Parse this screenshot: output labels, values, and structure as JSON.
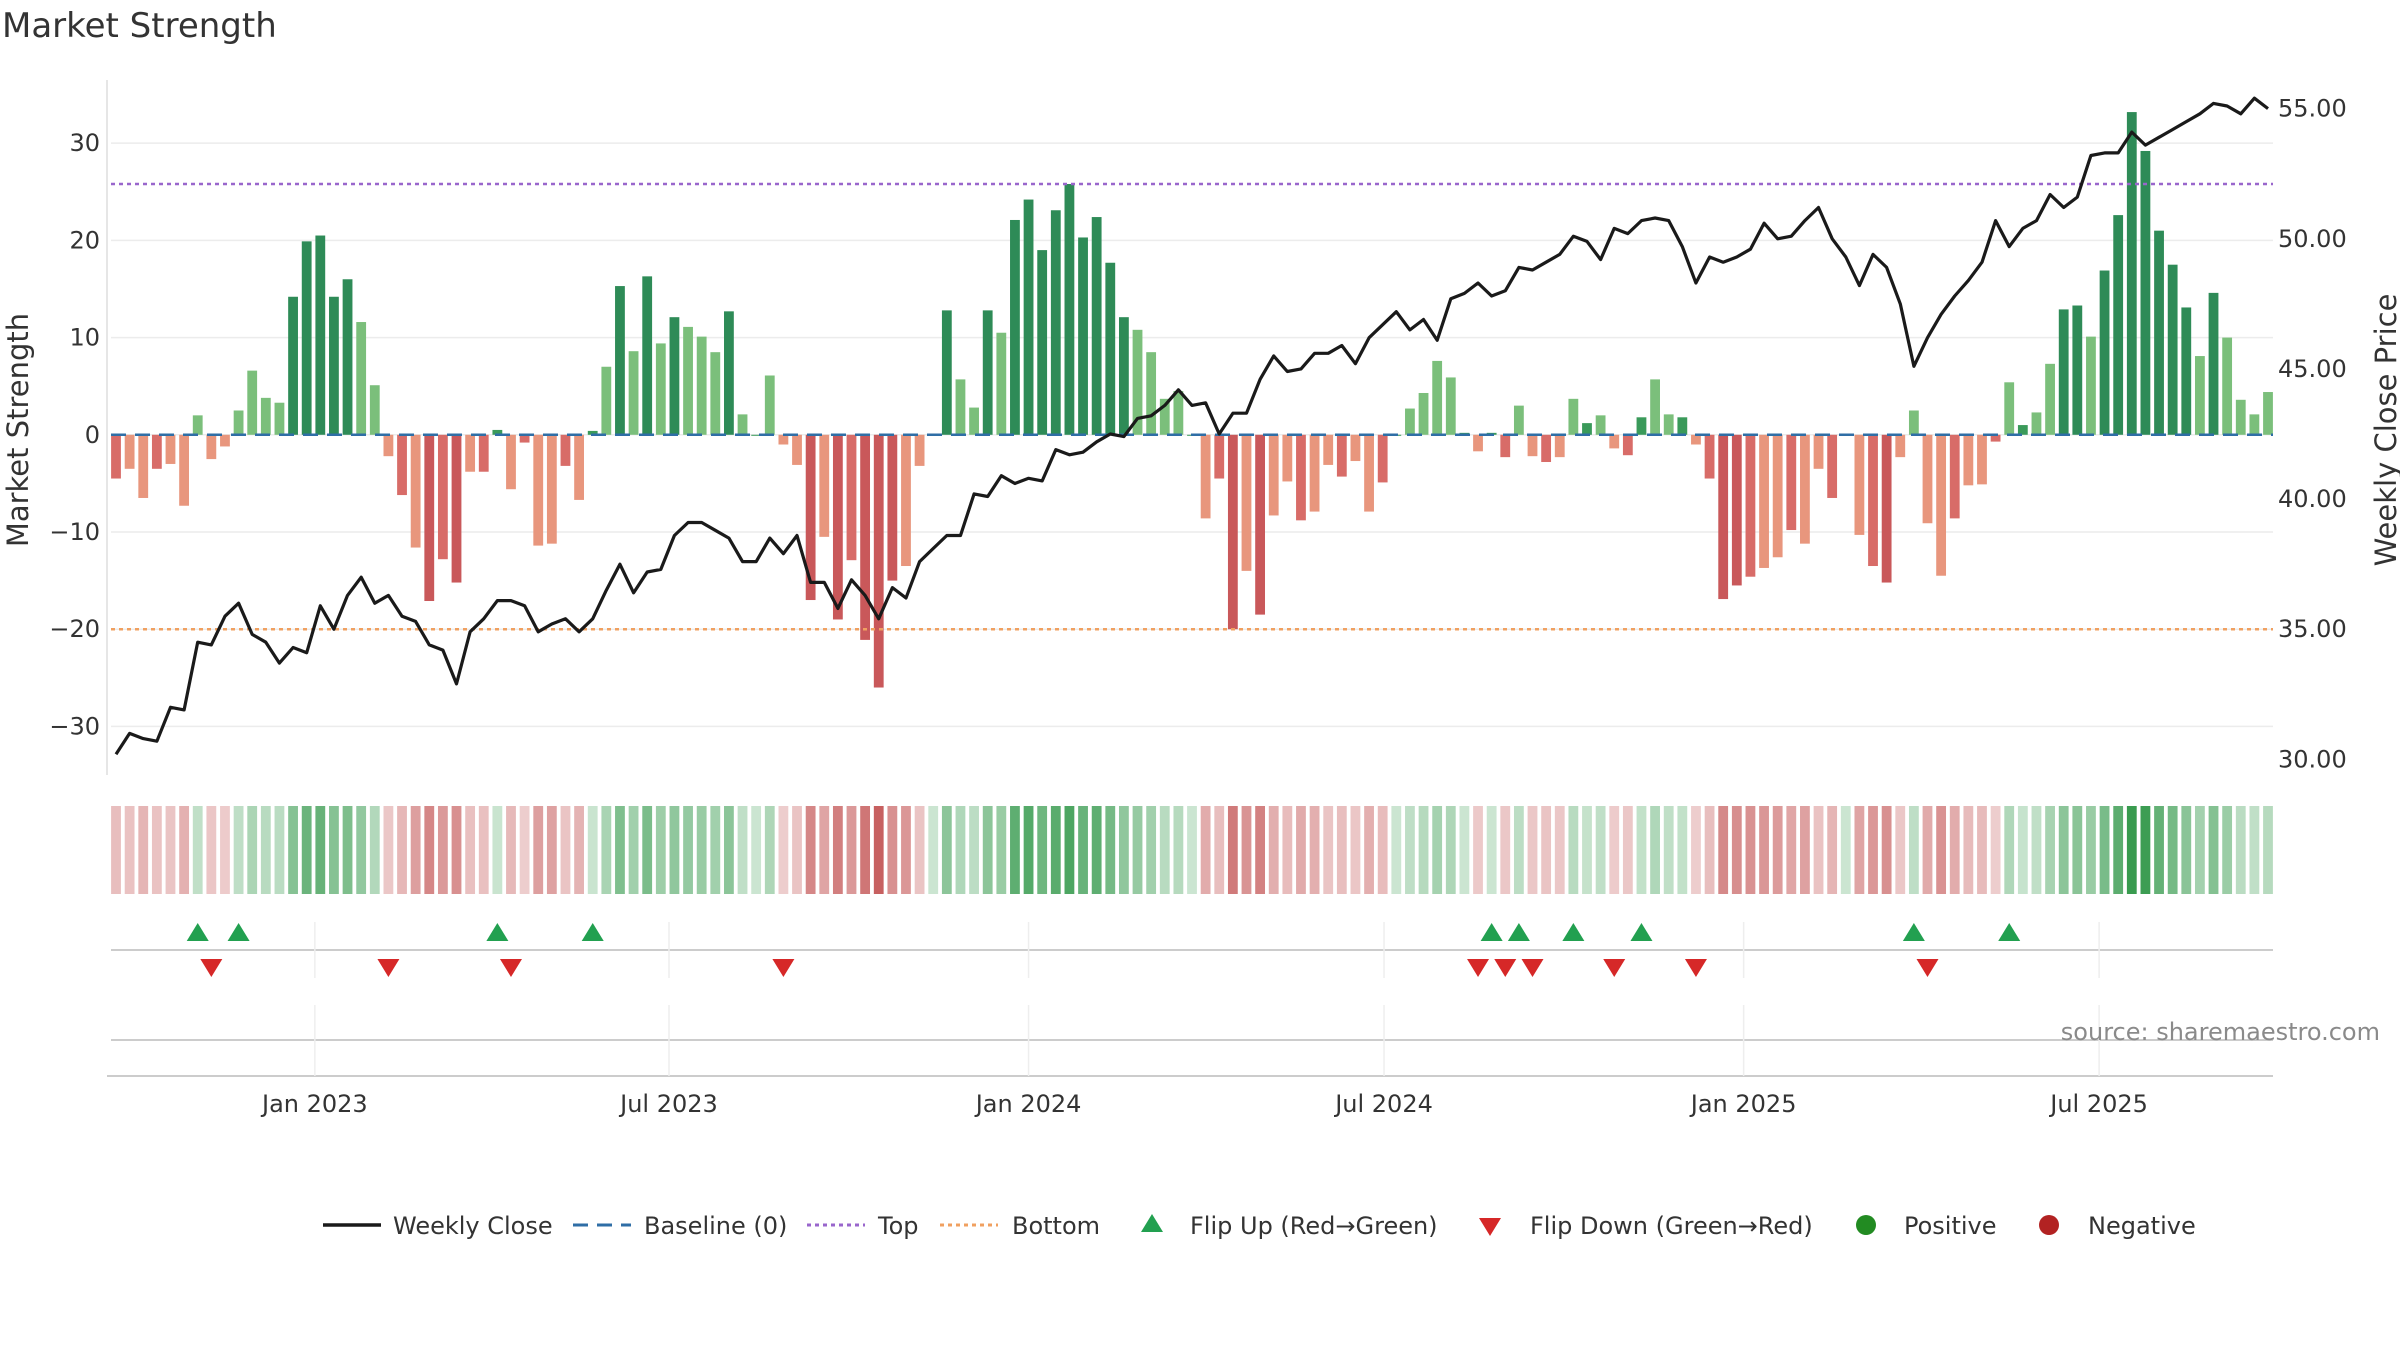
{
  "title": "Market Strength",
  "source": "source: sharemaestro.com",
  "chart_data": {
    "type": "bar",
    "title": "Market Strength",
    "ylabel": "Market Strength",
    "y2label": "Weekly Close Price",
    "ylim": [
      -35,
      36.5
    ],
    "y2lim": [
      29.4,
      56.1
    ],
    "yticks": [
      -30,
      -20,
      -10,
      0,
      10,
      20,
      30
    ],
    "yticklabels": [
      "−30",
      "−20",
      "−10",
      "0",
      "10",
      "20",
      "30"
    ],
    "y2ticks": [
      30,
      35,
      40,
      45,
      50,
      55
    ],
    "y2ticklabels": [
      "30.00",
      "35.00",
      "40.00",
      "45.00",
      "50.00",
      "55.00"
    ],
    "xticks": [
      {
        "label": "Jan 2023",
        "week": 14.6
      },
      {
        "label": "Jul 2023",
        "week": 40.6
      },
      {
        "label": "Jan 2024",
        "week": 67.0
      },
      {
        "label": "Jul 2024",
        "week": 93.1
      },
      {
        "label": "Jan 2025",
        "week": 119.5
      },
      {
        "label": "Jul 2025",
        "week": 145.6
      }
    ],
    "top_level": 25.8,
    "bottom_level": -20,
    "baseline": 0,
    "grid": true,
    "legend_position": "bottom",
    "strength": [
      -4.5,
      -3.5,
      -6.5,
      -3.5,
      -3,
      -7.3,
      2,
      -2.5,
      -1.2,
      2.5,
      6.6,
      3.8,
      3.3,
      14.2,
      19.9,
      20.5,
      14.2,
      16,
      11.6,
      5.1,
      -2.2,
      -6.2,
      -11.6,
      -17.1,
      -12.8,
      -15.2,
      -3.8,
      -3.8,
      0.5,
      -5.6,
      -0.8,
      -11.4,
      -11.2,
      -3.2,
      -6.7,
      0.4,
      7,
      15.3,
      8.6,
      16.3,
      9.4,
      12.1,
      11.1,
      10.1,
      8.5,
      12.7,
      2.1,
      0,
      6.1,
      -1,
      -3.1,
      -17,
      -10.5,
      -19,
      -12.9,
      -21.1,
      -26,
      -15,
      -13.5,
      -3.2,
      0,
      12.8,
      5.7,
      2.8,
      12.8,
      10.5,
      22.1,
      24.2,
      19,
      23.1,
      25.8,
      20.3,
      22.4,
      17.7,
      12.1,
      10.8,
      8.5,
      3.7,
      4.5,
      0,
      -8.6,
      -4.5,
      -20,
      -14,
      -18.5,
      -8.3,
      -4.8,
      -8.8,
      -7.9,
      -3.1,
      -4.3,
      -2.7,
      -7.9,
      -4.9,
      0,
      2.7,
      4.3,
      7.6,
      5.9,
      0.2,
      -1.7,
      0.2,
      -2.3,
      3,
      -2.2,
      -2.8,
      -2.3,
      3.7,
      1.2,
      2,
      -1.4,
      -2.1,
      1.8,
      5.7,
      2.1,
      1.8,
      -1,
      -4.5,
      -16.9,
      -15.5,
      -14.6,
      -13.7,
      -12.6,
      -9.8,
      -11.2,
      -3.5,
      -6.5,
      0,
      -10.3,
      -13.5,
      -15.2,
      -2.3,
      2.5,
      -9.1,
      -14.5,
      -8.6,
      -5.2,
      -5.1,
      -0.7,
      5.4,
      1,
      2.3,
      7.3,
      12.9,
      13.3,
      10.1,
      16.9,
      22.6,
      33.2,
      29.2,
      21,
      17.5,
      13.1,
      8.1,
      14.6,
      10,
      3.6,
      2.1,
      4.4
    ],
    "weekly_close": [
      30.2,
      31.0,
      30.8,
      30.7,
      32.0,
      31.9,
      34.5,
      34.4,
      35.5,
      36.0,
      34.8,
      34.5,
      33.7,
      34.3,
      34.1,
      35.9,
      35.0,
      36.3,
      37.0,
      36.0,
      36.3,
      35.5,
      35.3,
      34.4,
      34.2,
      32.9,
      34.9,
      35.4,
      36.1,
      36.1,
      35.9,
      34.9,
      35.2,
      35.4,
      34.9,
      35.4,
      36.5,
      37.5,
      36.4,
      37.2,
      37.3,
      38.6,
      39.1,
      39.1,
      38.8,
      38.5,
      37.6,
      37.6,
      38.5,
      37.9,
      38.6,
      36.8,
      36.8,
      35.8,
      36.9,
      36.3,
      35.4,
      36.6,
      36.2,
      37.6,
      38.1,
      38.6,
      38.6,
      40.2,
      40.1,
      40.9,
      40.6,
      40.8,
      40.7,
      41.9,
      41.7,
      41.8,
      42.2,
      42.5,
      42.4,
      43.1,
      43.2,
      43.6,
      44.2,
      43.6,
      43.7,
      42.5,
      43.3,
      43.3,
      44.6,
      45.5,
      44.9,
      45.0,
      45.6,
      45.6,
      45.9,
      45.2,
      46.2,
      46.7,
      47.2,
      46.5,
      46.9,
      46.1,
      47.7,
      47.9,
      48.3,
      47.8,
      48.0,
      48.9,
      48.8,
      49.1,
      49.4,
      50.1,
      49.9,
      49.2,
      50.4,
      50.2,
      50.7,
      50.8,
      50.7,
      49.7,
      48.3,
      49.3,
      49.1,
      49.3,
      49.6,
      50.6,
      50.0,
      50.1,
      50.7,
      51.2,
      50.0,
      49.3,
      48.2,
      49.4,
      48.9,
      47.5,
      45.1,
      46.2,
      47.1,
      47.8,
      48.4,
      49.1,
      50.7,
      49.7,
      50.4,
      50.7,
      51.7,
      51.2,
      51.6,
      53.2,
      53.3,
      53.3,
      54.1,
      53.6,
      53.9,
      54.2,
      54.5,
      54.8,
      55.2,
      55.1,
      54.8,
      55.4,
      55.0
    ]
  },
  "legend": {
    "weekly_close": "Weekly Close",
    "baseline": "Baseline (0)",
    "top": "Top",
    "bottom": "Bottom",
    "flip_up": "Flip Up (Red→Green)",
    "flip_down": "Flip Down (Green→Red)",
    "positive": "Positive",
    "negative": "Negative"
  },
  "colors": {
    "line": "#1a1a1a",
    "baseline": "#2f6ea6",
    "top": "#9966cc",
    "bottom": "#f0a060",
    "flip_up": "#22a050",
    "flip_down": "#d62828",
    "positive": "#228b22",
    "negative": "#b22222"
  }
}
